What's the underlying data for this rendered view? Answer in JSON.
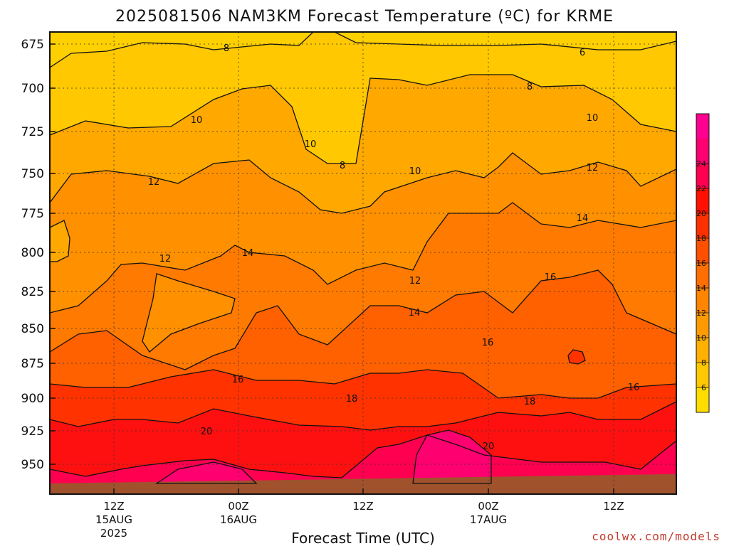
{
  "chart_data": {
    "type": "heatmap",
    "title": "2025081506 NAM3KM Forecast Temperature (ºC) for KRME",
    "xlabel": "Forecast Time (UTC)",
    "credit": "coolwx.com/models",
    "y_axis": {
      "ticks": [
        "675",
        "700",
        "725",
        "750",
        "775",
        "800",
        "825",
        "850",
        "875",
        "900",
        "925",
        "950"
      ],
      "orientation": "pressure decreasing upward"
    },
    "x_axis": {
      "ticks": [
        {
          "hour": "12Z",
          "date": "15AUG",
          "year": "2025"
        },
        {
          "hour": "00Z",
          "date": "16AUG",
          "year": ""
        },
        {
          "hour": "12Z",
          "date": "",
          "year": ""
        },
        {
          "hour": "00Z",
          "date": "17AUG",
          "year": ""
        },
        {
          "hour": "12Z",
          "date": "",
          "year": ""
        }
      ]
    },
    "colorbar": {
      "ticks": [
        "6",
        "8",
        "10",
        "12",
        "14",
        "16",
        "18",
        "20",
        "22",
        "24"
      ],
      "colors": [
        "#ffdd00",
        "#ffc800",
        "#ffb000",
        "#ff9a00",
        "#ff8400",
        "#ff6e00",
        "#ff5000",
        "#ff3000",
        "#ff1000",
        "#ff0050",
        "#ff0070",
        "#ff0090"
      ]
    },
    "levels": [
      {
        "temp": 8,
        "color": "#ffc800"
      },
      {
        "temp": 10,
        "color": "#ffa800"
      },
      {
        "temp": 12,
        "color": "#ff9000"
      },
      {
        "temp": 14,
        "color": "#ff7a00"
      },
      {
        "temp": 16,
        "color": "#ff6000"
      },
      {
        "temp": 18,
        "color": "#ff3200"
      },
      {
        "temp": 20,
        "color": "#ff1010"
      },
      {
        "temp": 22,
        "color": "#ff0050"
      }
    ],
    "contour_labels": [
      {
        "text": "8"
      },
      {
        "text": "6"
      },
      {
        "text": "8"
      },
      {
        "text": "8"
      },
      {
        "text": "10"
      },
      {
        "text": "10"
      },
      {
        "text": "10"
      },
      {
        "text": "10"
      },
      {
        "text": "12"
      },
      {
        "text": "12"
      },
      {
        "text": "12"
      },
      {
        "text": "12"
      },
      {
        "text": "14"
      },
      {
        "text": "14"
      },
      {
        "text": "14"
      },
      {
        "text": "16"
      },
      {
        "text": "16"
      },
      {
        "text": "16"
      },
      {
        "text": "16"
      },
      {
        "text": "18"
      },
      {
        "text": "18"
      },
      {
        "text": "20"
      },
      {
        "text": "20"
      }
    ],
    "grid": true,
    "legend": "right"
  }
}
